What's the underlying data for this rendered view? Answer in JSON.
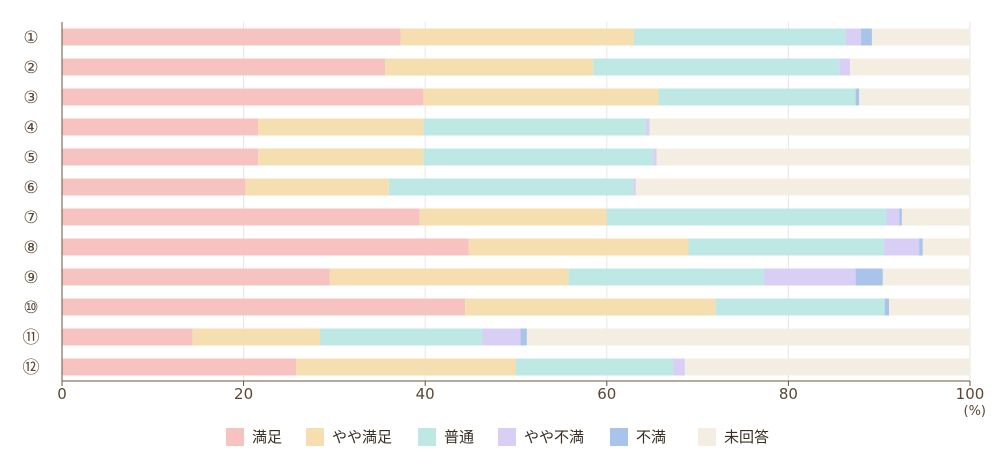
{
  "chart_data": {
    "type": "bar",
    "orientation": "horizontal",
    "stacked": true,
    "categories": [
      "①",
      "②",
      "③",
      "④",
      "⑤",
      "⑥",
      "⑦",
      "⑧",
      "⑨",
      "⑩",
      "⑪",
      "⑫"
    ],
    "series": [
      {
        "name": "満足",
        "color": "#f7c3c1",
        "values": [
          37.3,
          35.6,
          39.8,
          21.6,
          21.6,
          20.2,
          39.4,
          44.8,
          29.5,
          44.4,
          14.4,
          25.8
        ]
      },
      {
        "name": "やや満足",
        "color": "#f5deb0",
        "values": [
          25.7,
          22.9,
          25.9,
          18.2,
          18.2,
          15.8,
          20.6,
          24.2,
          26.3,
          27.6,
          14.0,
          24.2
        ]
      },
      {
        "name": "普通",
        "color": "#bde8e4",
        "values": [
          23.3,
          27.1,
          21.7,
          24.5,
          25.3,
          26.9,
          30.8,
          21.5,
          21.5,
          18.6,
          17.9,
          17.3
        ]
      },
      {
        "name": "やや不満",
        "color": "#d9cff5",
        "values": [
          1.7,
          1.2,
          0.0,
          0.4,
          0.4,
          0.3,
          1.4,
          3.9,
          10.1,
          0.0,
          4.2,
          1.3
        ]
      },
      {
        "name": "不満",
        "color": "#a9c4ea",
        "values": [
          1.2,
          0.0,
          0.4,
          0.0,
          0.0,
          0.0,
          0.3,
          0.4,
          3.0,
          0.5,
          0.7,
          0.0
        ]
      },
      {
        "name": "未回答",
        "color": "#f4ede2",
        "values": [
          10.8,
          13.2,
          12.2,
          35.3,
          34.5,
          36.8,
          7.5,
          5.2,
          9.6,
          8.9,
          48.8,
          31.4
        ]
      }
    ],
    "xlim": [
      0,
      100
    ],
    "xticks": [
      0,
      20,
      40,
      60,
      80,
      100
    ],
    "unit_label": "(%)",
    "grid": true,
    "legend_position": "bottom"
  }
}
